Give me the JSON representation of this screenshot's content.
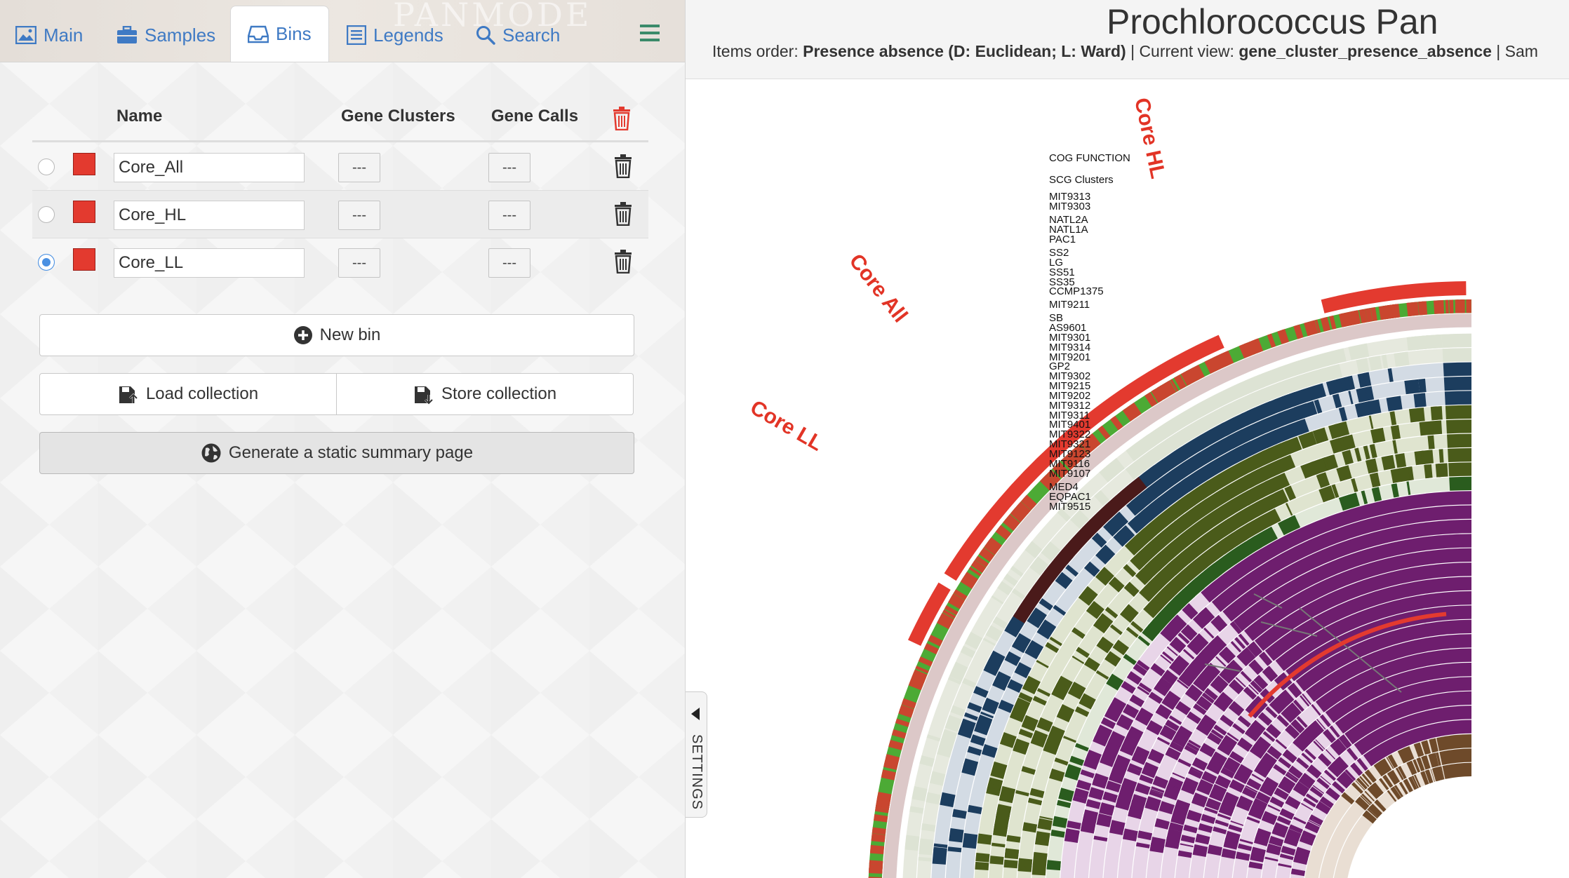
{
  "tabs": [
    {
      "label": "Main",
      "icon": "image-icon"
    },
    {
      "label": "Samples",
      "icon": "briefcase-icon"
    },
    {
      "label": "Bins",
      "icon": "inbox-icon"
    },
    {
      "label": "Legends",
      "icon": "list-icon"
    },
    {
      "label": "Search",
      "icon": "search-icon"
    }
  ],
  "watermark": "PANMODE",
  "active_tab": "Bins",
  "table": {
    "headers": {
      "name": "Name",
      "gene_clusters": "Gene Clusters",
      "gene_calls": "Gene Calls"
    },
    "rows": [
      {
        "name": "Core_All",
        "gene_clusters": "---",
        "gene_calls": "---",
        "color": "#e33a2f",
        "selected": false
      },
      {
        "name": "Core_HL",
        "gene_clusters": "---",
        "gene_calls": "---",
        "color": "#e33a2f",
        "selected": false
      },
      {
        "name": "Core_LL",
        "gene_clusters": "---",
        "gene_calls": "---",
        "color": "#e33a2f",
        "selected": true
      }
    ]
  },
  "buttons": {
    "new_bin": "New bin",
    "load_collection": "Load collection",
    "store_collection": "Store collection",
    "static_summary": "Generate a static summary page"
  },
  "header": {
    "title": "Prochlorococcus Pan",
    "items_order_label": "Items order:",
    "items_order_value": "Presence absence (D: Euclidean; L: Ward)",
    "current_view_label": "Current view:",
    "current_view_value": "gene_cluster_presence_absence",
    "trailing": "Sam"
  },
  "settings_label": "SETTINGS",
  "layers": [
    "COG FUNCTION",
    "SCG Clusters",
    "MIT9313",
    "MIT9303",
    "NATL2A",
    "NATL1A",
    "PAC1",
    "SS2",
    "LG",
    "SS51",
    "SS35",
    "CCMP1375",
    "MIT9211",
    "SB",
    "AS9601",
    "MIT9301",
    "MIT9314",
    "MIT9201",
    "GP2",
    "MIT9302",
    "MIT9215",
    "MIT9202",
    "MIT9312",
    "MIT9311",
    "MIT9401",
    "MIT9322",
    "MIT9321",
    "MIT9123",
    "MIT9116",
    "MIT9107",
    "MED4",
    "EQPAC1",
    "MIT9515"
  ],
  "bins_on_plot": [
    "Core HL",
    "Core All",
    "Core LL"
  ],
  "colors": {
    "bin_red": "#e33a2f",
    "cog_green": "#4caa35",
    "scg": "#dcc8c8",
    "group_a": "#dde3d4",
    "group_b": "#1c3d5e",
    "group_c": "#4a5b1a",
    "group_d": "#2a5c1e",
    "group_e": "#6e1e6e",
    "group_f": "#6e4a2a",
    "core_all_dark": "#4a1a1a"
  }
}
